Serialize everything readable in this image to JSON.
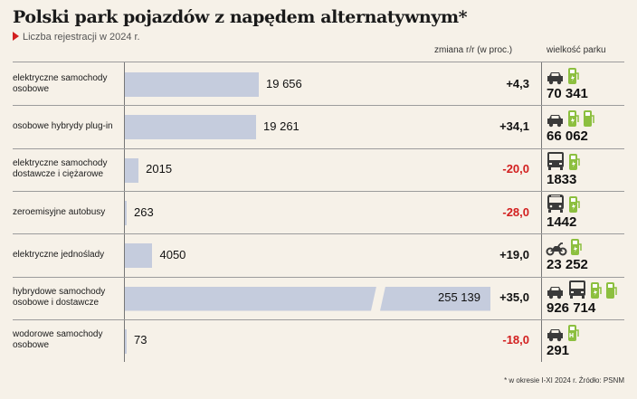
{
  "header": {
    "title": "Polski park pojazdów z napędem alternatywnym*",
    "subtitle": "Liczba rejestracji w 2024 r."
  },
  "columns": {
    "change": "zmiana r/r (w proc.)",
    "fleet": "wielkość parku"
  },
  "footnote": "* w okresie I-XI 2024 r. Źródło: PSNM",
  "colors": {
    "bar": "#c5ccdd",
    "positive": "#111111",
    "negative": "#d21f1f",
    "icon_vehicle": "#3a3a3a",
    "icon_charger": "#8cbf3f",
    "background": "#f6f1e8"
  },
  "chart_data": {
    "type": "bar",
    "orientation": "horizontal",
    "title": "Polski park pojazdów z napędem alternatywnym*",
    "subtitle": "Liczba rejestracji w 2024 r.",
    "categories": [
      "elektryczne samochody osobowe",
      "osobowe hybrydy plug-in",
      "elektryczne samochody dostawcze i ciężarowe",
      "zeroemisyjne autobusy",
      "elektryczne jednoślady",
      "hybrydowe samochody osobowe i dostawcze",
      "wodorowe samochody osobowe"
    ],
    "series": [
      {
        "values": [
          19656,
          19261,
          2015,
          263,
          4050,
          255139,
          73
        ],
        "labels": [
          "19 656",
          "19 261",
          "2015",
          "263",
          "4050",
          "255 139",
          "73"
        ]
      }
    ],
    "axis_break": true,
    "change_yoy_percent": [
      4.3,
      34.1,
      -20.0,
      -28.0,
      19.0,
      35.0,
      -18.0
    ],
    "change_labels": [
      "+4,3",
      "+34,1",
      "-20,0",
      "-28,0",
      "+19,0",
      "+35,0",
      "-18,0"
    ],
    "fleet_size": [
      70341,
      66062,
      1833,
      1442,
      23252,
      926714,
      291
    ],
    "fleet_labels": [
      "70 341",
      "66 062",
      "1833",
      "1442",
      "23 252",
      "926 714",
      "291"
    ],
    "icons": [
      [
        "car-icon",
        "charger-icon"
      ],
      [
        "car-icon",
        "charger-icon",
        "fuel-pump-icon"
      ],
      [
        "truck-icon",
        "charger-icon"
      ],
      [
        "bus-icon",
        "charger-icon"
      ],
      [
        "motorcycle-icon",
        "charger-icon"
      ],
      [
        "car-icon",
        "truck-icon",
        "charger-icon",
        "fuel-pump-icon"
      ],
      [
        "car-icon",
        "hydrogen-icon"
      ]
    ],
    "grid": false
  }
}
